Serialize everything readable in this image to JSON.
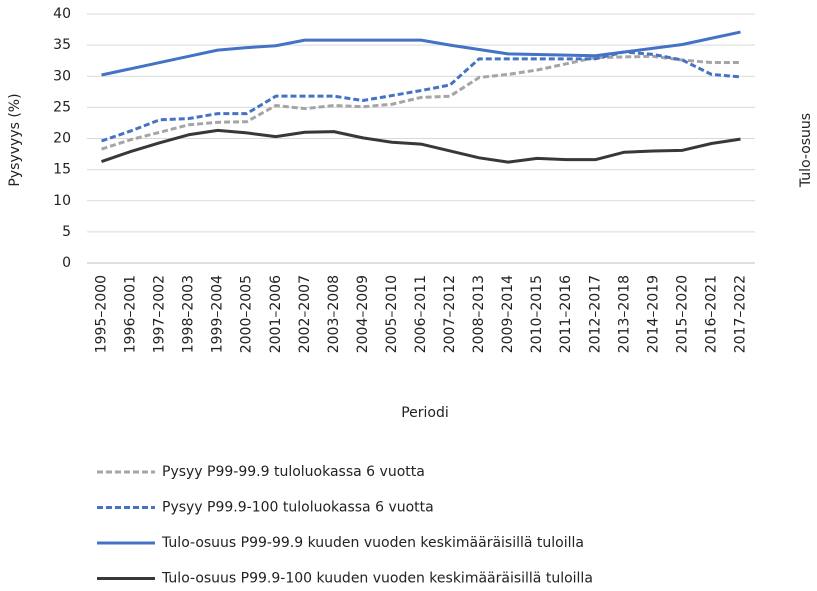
{
  "chart_data": {
    "type": "line",
    "ylabel": "Pysyvyys (%)",
    "y2label": "Tulo-osuus",
    "xlabel": "Periodi",
    "categories": [
      "1995–2000",
      "1996–2001",
      "1997–2002",
      "1998–2003",
      "1999–2004",
      "2000–2005",
      "2001–2006",
      "2002–2007",
      "2003–2008",
      "2004–2009",
      "2005–2010",
      "2006–2011",
      "2007–2012",
      "2008–2013",
      "2009–2014",
      "2010–2015",
      "2011–2016",
      "2012–2017",
      "2013–2018",
      "2014–2019",
      "2015–2020",
      "2016–2021",
      "2017–2022"
    ],
    "ylim": [
      0,
      40
    ],
    "yticks": [
      0,
      5,
      10,
      15,
      20,
      25,
      30,
      35,
      40
    ],
    "grid": true,
    "series": [
      {
        "name": "Pysyy P99-99.9 tuloluokassa 6 vuotta",
        "color": "#a5a5a5",
        "dashed": true,
        "values": [
          18.3,
          19.8,
          21.0,
          22.2,
          22.6,
          22.7,
          25.3,
          24.8,
          25.3,
          25.1,
          25.5,
          26.6,
          26.8,
          29.8,
          30.3,
          31.0,
          32.0,
          33.0,
          33.1,
          33.2,
          32.6,
          32.2,
          32.2
        ]
      },
      {
        "name": "Pysyy P99.9-100 tuloluokassa 6 vuotta",
        "color": "#4472c4",
        "dashed": true,
        "values": [
          19.6,
          21.2,
          23.0,
          23.2,
          24.0,
          24.0,
          26.8,
          26.8,
          26.8,
          26.1,
          26.9,
          27.7,
          28.6,
          32.8,
          32.8,
          32.8,
          32.8,
          32.8,
          33.9,
          33.5,
          32.6,
          30.3,
          29.9
        ]
      },
      {
        "name": "Tulo-osuus P99-99.9 kuuden vuoden keskimääräisillä tuloilla",
        "color": "#4472c4",
        "dashed": false,
        "values": [
          30.2,
          31.2,
          32.2,
          33.2,
          34.2,
          34.6,
          34.9,
          35.8,
          35.8,
          35.8,
          35.8,
          35.8,
          35.0,
          34.3,
          33.6,
          33.5,
          33.4,
          33.3,
          33.9,
          34.5,
          35.1,
          36.1,
          37.1
        ]
      },
      {
        "name": "Tulo-osuus P99.9-100 kuuden vuoden keskimääräisillä tuloilla",
        "color": "#383838",
        "dashed": false,
        "values": [
          16.3,
          17.9,
          19.3,
          20.6,
          21.3,
          20.9,
          20.3,
          21.0,
          21.1,
          20.1,
          19.4,
          19.1,
          18.0,
          16.9,
          16.2,
          16.8,
          16.6,
          16.6,
          17.8,
          18.0,
          18.1,
          19.2,
          19.9
        ]
      }
    ]
  }
}
